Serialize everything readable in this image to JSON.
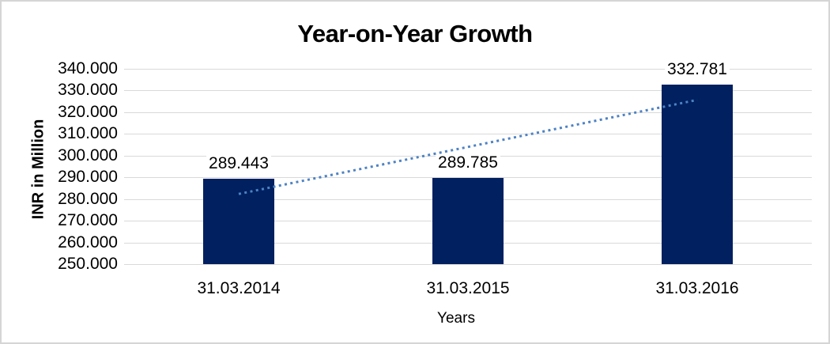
{
  "frame": {
    "background": "#ffffff",
    "border_color": "#d5d5d5"
  },
  "chart_data": {
    "type": "bar",
    "title": "Year-on-Year Growth",
    "xlabel": "Years",
    "ylabel": "INR in Million",
    "categories": [
      "31.03.2014",
      "31.03.2015",
      "31.03.2016"
    ],
    "values": [
      289.443,
      289.785,
      332.781
    ],
    "value_labels": [
      "289.443",
      "289.785",
      "332.781"
    ],
    "ylim": [
      250,
      340
    ],
    "ytick_step": 10,
    "yticks": [
      {
        "value": 340,
        "label": "340.000"
      },
      {
        "value": 330,
        "label": "330.000"
      },
      {
        "value": 320,
        "label": "320.000"
      },
      {
        "value": 310,
        "label": "310.000"
      },
      {
        "value": 300,
        "label": "300.000"
      },
      {
        "value": 290,
        "label": "290.000"
      },
      {
        "value": 280,
        "label": "280.000"
      },
      {
        "value": 270,
        "label": "270.000"
      },
      {
        "value": 260,
        "label": "260.000"
      },
      {
        "value": 250,
        "label": "250.000"
      }
    ],
    "grid": "horizontal",
    "legend": "none",
    "bar_color": "#002060",
    "gridline_color": "#d9d9d9",
    "text_color": "#000000",
    "trendline": {
      "type": "linear",
      "style": "dotted",
      "color": "#4d82c3",
      "start_value": 282.33,
      "end_value": 325.67
    }
  }
}
